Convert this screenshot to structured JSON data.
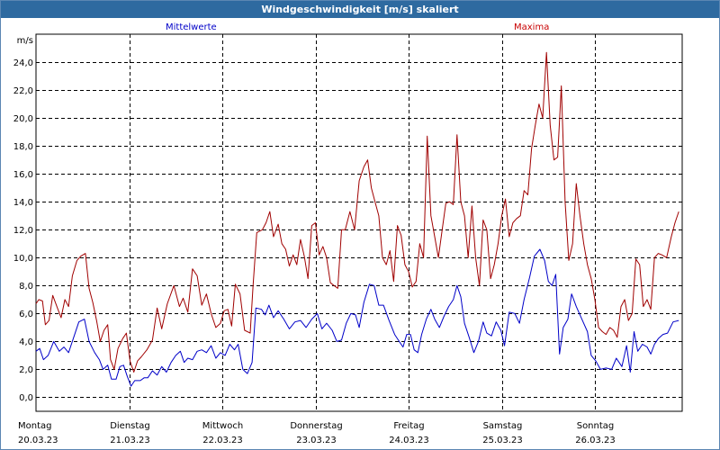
{
  "chart_data": {
    "type": "line",
    "title": "Windgeschwindigkeit [m/s] skaliert",
    "ylabel": "m/s",
    "ylim": [
      -1,
      26
    ],
    "yticks": [
      "0,0",
      "2,0",
      "4,0",
      "6,0",
      "8,0",
      "10,0",
      "12,0",
      "14,0",
      "16,0",
      "18,0",
      "20,0",
      "22,0",
      "24,0"
    ],
    "ytick_values": [
      0,
      2,
      4,
      6,
      8,
      10,
      12,
      14,
      16,
      18,
      20,
      22,
      24
    ],
    "x_range_days": [
      0,
      7.17
    ],
    "days": [
      {
        "weekday": "Montag",
        "date": "20.03.23"
      },
      {
        "weekday": "Dienstag",
        "date": "21.03.23"
      },
      {
        "weekday": "Mittwoch",
        "date": "22.03.23"
      },
      {
        "weekday": "Donnerstag",
        "date": "23.03.23"
      },
      {
        "weekday": "Freitag",
        "date": "24.03.23"
      },
      {
        "weekday": "Samstag",
        "date": "25.03.23"
      },
      {
        "weekday": "Sonntag",
        "date": "26.03.23"
      }
    ],
    "grid": true,
    "legend_placement": "top",
    "series": [
      {
        "name": "Mittelwerte",
        "color": "#0000c8",
        "points": [
          [
            0,
            3.3
          ],
          [
            0.04,
            3.5
          ],
          [
            0.08,
            2.7
          ],
          [
            0.13,
            3.0
          ],
          [
            0.19,
            4.0
          ],
          [
            0.25,
            3.3
          ],
          [
            0.3,
            3.6
          ],
          [
            0.35,
            3.2
          ],
          [
            0.4,
            4.2
          ],
          [
            0.46,
            5.4
          ],
          [
            0.52,
            5.6
          ],
          [
            0.57,
            4.0
          ],
          [
            0.63,
            3.2
          ],
          [
            0.68,
            2.7
          ],
          [
            0.72,
            2.0
          ],
          [
            0.77,
            2.3
          ],
          [
            0.81,
            1.3
          ],
          [
            0.86,
            1.3
          ],
          [
            0.9,
            2.2
          ],
          [
            0.94,
            2.3
          ],
          [
            0.98,
            1.5
          ],
          [
            1.02,
            0.8
          ],
          [
            1.06,
            1.2
          ],
          [
            1.12,
            1.2
          ],
          [
            1.16,
            1.4
          ],
          [
            1.2,
            1.4
          ],
          [
            1.25,
            1.9
          ],
          [
            1.3,
            1.6
          ],
          [
            1.35,
            2.2
          ],
          [
            1.4,
            1.8
          ],
          [
            1.45,
            2.5
          ],
          [
            1.5,
            3.0
          ],
          [
            1.55,
            3.3
          ],
          [
            1.59,
            2.5
          ],
          [
            1.63,
            2.8
          ],
          [
            1.68,
            2.7
          ],
          [
            1.73,
            3.3
          ],
          [
            1.78,
            3.4
          ],
          [
            1.83,
            3.2
          ],
          [
            1.88,
            3.7
          ],
          [
            1.93,
            2.8
          ],
          [
            1.98,
            3.2
          ],
          [
            2.03,
            3.0
          ],
          [
            2.08,
            3.8
          ],
          [
            2.13,
            3.4
          ],
          [
            2.17,
            3.8
          ],
          [
            2.22,
            2.0
          ],
          [
            2.27,
            1.7
          ],
          [
            2.32,
            2.5
          ],
          [
            2.36,
            6.4
          ],
          [
            2.42,
            6.3
          ],
          [
            2.46,
            5.9
          ],
          [
            2.5,
            6.6
          ],
          [
            2.55,
            5.7
          ],
          [
            2.6,
            6.2
          ],
          [
            2.66,
            5.6
          ],
          [
            2.72,
            4.9
          ],
          [
            2.78,
            5.4
          ],
          [
            2.84,
            5.5
          ],
          [
            2.9,
            5.0
          ],
          [
            2.96,
            5.6
          ],
          [
            3.02,
            6.0
          ],
          [
            3.07,
            4.9
          ],
          [
            3.12,
            5.3
          ],
          [
            3.18,
            4.8
          ],
          [
            3.23,
            4.0
          ],
          [
            3.28,
            4.1
          ],
          [
            3.33,
            5.3
          ],
          [
            3.38,
            6.0
          ],
          [
            3.43,
            5.9
          ],
          [
            3.47,
            5.0
          ],
          [
            3.52,
            6.8
          ],
          [
            3.58,
            8.1
          ],
          [
            3.63,
            8.0
          ],
          [
            3.68,
            6.6
          ],
          [
            3.73,
            6.6
          ],
          [
            3.79,
            5.5
          ],
          [
            3.85,
            4.5
          ],
          [
            3.89,
            4.1
          ],
          [
            3.94,
            3.6
          ],
          [
            3.98,
            4.5
          ],
          [
            4.02,
            4.5
          ],
          [
            4.06,
            3.4
          ],
          [
            4.1,
            3.2
          ],
          [
            4.14,
            4.5
          ],
          [
            4.19,
            5.6
          ],
          [
            4.24,
            6.3
          ],
          [
            4.28,
            5.6
          ],
          [
            4.33,
            5.0
          ],
          [
            4.38,
            5.8
          ],
          [
            4.43,
            6.5
          ],
          [
            4.48,
            7.0
          ],
          [
            4.52,
            8.0
          ],
          [
            4.56,
            7.2
          ],
          [
            4.6,
            5.3
          ],
          [
            4.65,
            4.3
          ],
          [
            4.7,
            3.2
          ],
          [
            4.75,
            4.0
          ],
          [
            4.8,
            5.4
          ],
          [
            4.84,
            4.6
          ],
          [
            4.89,
            4.4
          ],
          [
            4.94,
            5.4
          ],
          [
            4.99,
            4.8
          ],
          [
            5.03,
            3.7
          ],
          [
            5.08,
            6.1
          ],
          [
            5.14,
            6.0
          ],
          [
            5.19,
            5.3
          ],
          [
            5.24,
            7.0
          ],
          [
            5.3,
            8.6
          ],
          [
            5.35,
            10.1
          ],
          [
            5.41,
            10.6
          ],
          [
            5.46,
            9.8
          ],
          [
            5.5,
            8.3
          ],
          [
            5.54,
            8.0
          ],
          [
            5.58,
            8.8
          ],
          [
            5.62,
            3.1
          ],
          [
            5.66,
            5.0
          ],
          [
            5.71,
            5.6
          ],
          [
            5.75,
            7.4
          ],
          [
            5.8,
            6.5
          ],
          [
            5.86,
            5.6
          ],
          [
            5.92,
            4.7
          ],
          [
            5.96,
            3.0
          ],
          [
            6.01,
            2.6
          ],
          [
            6.06,
            2.0
          ],
          [
            6.12,
            2.1
          ],
          [
            6.18,
            2.0
          ],
          [
            6.23,
            2.8
          ],
          [
            6.29,
            2.2
          ],
          [
            6.34,
            3.7
          ],
          [
            6.38,
            1.8
          ],
          [
            6.42,
            4.7
          ],
          [
            6.46,
            3.3
          ],
          [
            6.51,
            3.8
          ],
          [
            6.56,
            3.6
          ],
          [
            6.6,
            3.1
          ],
          [
            6.64,
            3.8
          ],
          [
            6.68,
            4.2
          ],
          [
            6.73,
            4.5
          ],
          [
            6.78,
            4.6
          ],
          [
            6.84,
            5.4
          ],
          [
            6.9,
            5.5
          ]
        ]
      },
      {
        "name": "Maxima",
        "color": "#a00000",
        "points": [
          [
            0,
            6.7
          ],
          [
            0.03,
            7.0
          ],
          [
            0.07,
            6.9
          ],
          [
            0.1,
            5.2
          ],
          [
            0.14,
            5.5
          ],
          [
            0.18,
            7.3
          ],
          [
            0.23,
            6.4
          ],
          [
            0.27,
            5.7
          ],
          [
            0.31,
            7.0
          ],
          [
            0.35,
            6.5
          ],
          [
            0.39,
            8.7
          ],
          [
            0.44,
            9.8
          ],
          [
            0.48,
            10.1
          ],
          [
            0.53,
            10.3
          ],
          [
            0.57,
            7.8
          ],
          [
            0.61,
            6.8
          ],
          [
            0.65,
            5.5
          ],
          [
            0.69,
            4.0
          ],
          [
            0.73,
            4.8
          ],
          [
            0.77,
            5.2
          ],
          [
            0.8,
            2.7
          ],
          [
            0.84,
            2.0
          ],
          [
            0.88,
            3.5
          ],
          [
            0.93,
            4.2
          ],
          [
            0.97,
            4.6
          ],
          [
            1.01,
            2.6
          ],
          [
            1.05,
            1.8
          ],
          [
            1.09,
            2.6
          ],
          [
            1.13,
            2.9
          ],
          [
            1.19,
            3.4
          ],
          [
            1.25,
            4.1
          ],
          [
            1.3,
            6.4
          ],
          [
            1.35,
            4.9
          ],
          [
            1.41,
            6.7
          ],
          [
            1.48,
            8.0
          ],
          [
            1.54,
            6.5
          ],
          [
            1.58,
            7.1
          ],
          [
            1.63,
            6.1
          ],
          [
            1.68,
            9.2
          ],
          [
            1.73,
            8.7
          ],
          [
            1.78,
            6.6
          ],
          [
            1.83,
            7.4
          ],
          [
            1.88,
            6.0
          ],
          [
            1.93,
            5.0
          ],
          [
            1.98,
            5.3
          ],
          [
            2.02,
            6.2
          ],
          [
            2.06,
            6.3
          ],
          [
            2.1,
            5.1
          ],
          [
            2.14,
            8.1
          ],
          [
            2.19,
            7.4
          ],
          [
            2.24,
            4.8
          ],
          [
            2.3,
            4.6
          ],
          [
            2.33,
            8.0
          ],
          [
            2.37,
            11.8
          ],
          [
            2.43,
            12.0
          ],
          [
            2.47,
            12.5
          ],
          [
            2.51,
            13.3
          ],
          [
            2.55,
            11.5
          ],
          [
            2.6,
            12.4
          ],
          [
            2.64,
            11.0
          ],
          [
            2.68,
            10.6
          ],
          [
            2.72,
            9.4
          ],
          [
            2.76,
            10.2
          ],
          [
            2.8,
            9.5
          ],
          [
            2.84,
            11.3
          ],
          [
            2.88,
            10.1
          ],
          [
            2.92,
            8.5
          ],
          [
            2.96,
            12.3
          ],
          [
            3.0,
            12.5
          ],
          [
            3.04,
            10.2
          ],
          [
            3.08,
            10.8
          ],
          [
            3.12,
            10.0
          ],
          [
            3.16,
            8.2
          ],
          [
            3.2,
            8.0
          ],
          [
            3.24,
            7.8
          ],
          [
            3.28,
            12.0
          ],
          [
            3.32,
            12.0
          ],
          [
            3.37,
            13.3
          ],
          [
            3.42,
            12.0
          ],
          [
            3.47,
            15.5
          ],
          [
            3.52,
            16.5
          ],
          [
            3.56,
            17.0
          ],
          [
            3.6,
            15.0
          ],
          [
            3.64,
            14.0
          ],
          [
            3.68,
            13.0
          ],
          [
            3.72,
            10.0
          ],
          [
            3.76,
            9.5
          ],
          [
            3.8,
            10.5
          ],
          [
            3.84,
            8.3
          ],
          [
            3.88,
            12.3
          ],
          [
            3.92,
            11.6
          ],
          [
            3.96,
            9.5
          ],
          [
            4.0,
            9.0
          ],
          [
            4.04,
            7.9
          ],
          [
            4.08,
            8.3
          ],
          [
            4.12,
            11.0
          ],
          [
            4.16,
            10.0
          ],
          [
            4.2,
            18.7
          ],
          [
            4.24,
            13.0
          ],
          [
            4.28,
            11.5
          ],
          [
            4.32,
            10.0
          ],
          [
            4.36,
            12.0
          ],
          [
            4.4,
            13.9
          ],
          [
            4.44,
            14.0
          ],
          [
            4.48,
            13.8
          ],
          [
            4.52,
            18.8
          ],
          [
            4.56,
            14.0
          ],
          [
            4.6,
            13.0
          ],
          [
            4.64,
            10.0
          ],
          [
            4.68,
            13.7
          ],
          [
            4.72,
            10.0
          ],
          [
            4.76,
            8.0
          ],
          [
            4.8,
            12.7
          ],
          [
            4.84,
            12.0
          ],
          [
            4.88,
            8.5
          ],
          [
            4.92,
            9.5
          ],
          [
            4.96,
            11.0
          ],
          [
            5.0,
            13.0
          ],
          [
            5.04,
            14.2
          ],
          [
            5.08,
            11.5
          ],
          [
            5.12,
            12.5
          ],
          [
            5.16,
            12.8
          ],
          [
            5.2,
            13.0
          ],
          [
            5.24,
            14.8
          ],
          [
            5.28,
            14.5
          ],
          [
            5.32,
            17.8
          ],
          [
            5.36,
            19.5
          ],
          [
            5.4,
            21.0
          ],
          [
            5.44,
            20.0
          ],
          [
            5.48,
            24.7
          ],
          [
            5.52,
            19.5
          ],
          [
            5.56,
            17.0
          ],
          [
            5.6,
            17.2
          ],
          [
            5.64,
            22.3
          ],
          [
            5.68,
            14.0
          ],
          [
            5.72,
            9.8
          ],
          [
            5.76,
            11.0
          ],
          [
            5.8,
            15.3
          ],
          [
            5.84,
            13.0
          ],
          [
            5.88,
            11.0
          ],
          [
            5.92,
            9.5
          ],
          [
            5.96,
            8.5
          ],
          [
            6.0,
            7.0
          ],
          [
            6.04,
            5.0
          ],
          [
            6.08,
            4.7
          ],
          [
            6.12,
            4.5
          ],
          [
            6.16,
            5.0
          ],
          [
            6.2,
            4.8
          ],
          [
            6.24,
            4.3
          ],
          [
            6.28,
            6.5
          ],
          [
            6.32,
            7.0
          ],
          [
            6.36,
            5.5
          ],
          [
            6.4,
            6.0
          ],
          [
            6.44,
            9.9
          ],
          [
            6.48,
            9.5
          ],
          [
            6.52,
            6.5
          ],
          [
            6.56,
            7.0
          ],
          [
            6.6,
            6.3
          ],
          [
            6.64,
            10.0
          ],
          [
            6.68,
            10.3
          ],
          [
            6.72,
            10.2
          ],
          [
            6.77,
            10.0
          ],
          [
            6.82,
            11.5
          ],
          [
            6.86,
            12.5
          ],
          [
            6.9,
            13.3
          ]
        ]
      }
    ]
  }
}
